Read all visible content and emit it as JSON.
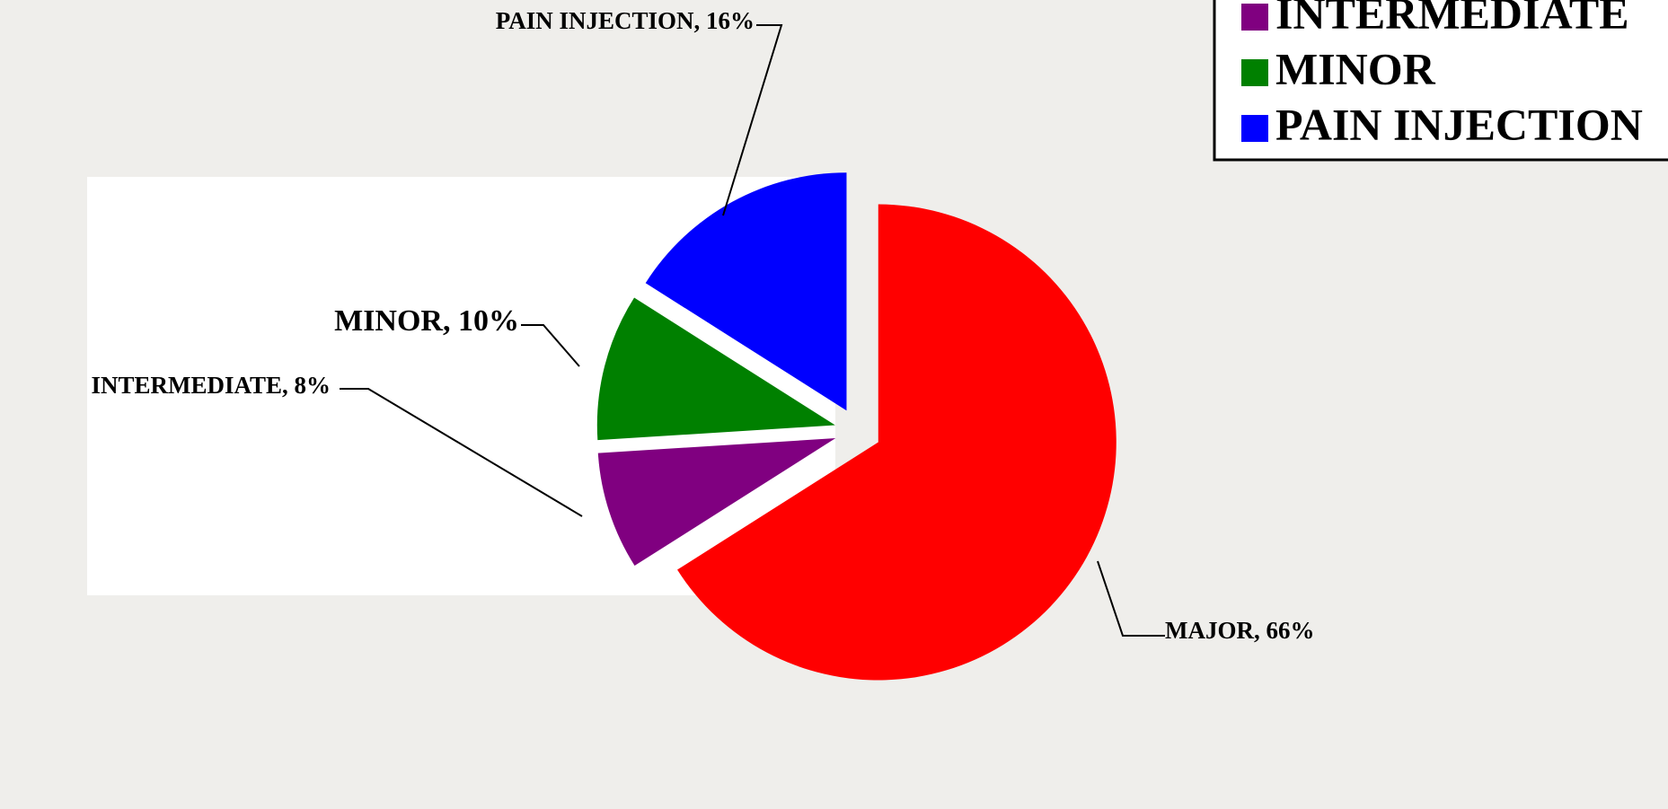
{
  "chart_data": {
    "type": "pie",
    "categories": [
      "MAJOR",
      "INTERMEDIATE",
      "MINOR",
      "PAIN INJECTION"
    ],
    "values": [
      66,
      8,
      10,
      16
    ],
    "value_labels": [
      "MAJOR, 66%",
      "INTERMEDIATE, 8%",
      "MINOR, 10%",
      "PAIN INJECTION, 16%"
    ],
    "colors": [
      "#ff0000",
      "#800080",
      "#008000",
      "#0000ff"
    ],
    "exploded": true,
    "legend": "top-right"
  }
}
